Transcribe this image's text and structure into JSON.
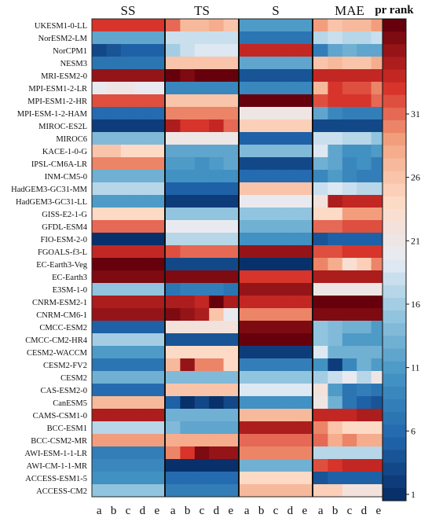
{
  "chart_data": {
    "type": "heatmap",
    "column_groups": [
      "SS",
      "TS",
      "S",
      "MAE"
    ],
    "sub_columns": [
      "a",
      "b",
      "c",
      "d",
      "e"
    ],
    "models": [
      "UKESM1-0-LL",
      "NorESM2-LM",
      "NorCPM1",
      "NESM3",
      "MRI-ESM2-0",
      "MPI-ESM1-2-LR",
      "MPI-ESM1-2-HR",
      "MPI-ESM-1-2-HAM",
      "MIROC-ES2L",
      "MIROC6",
      "KACE-1-0-G",
      "IPSL-CM6A-LR",
      "INM-CM5-0",
      "HadGEM3-GC31-MM",
      "HadGEM3-GC31-LL",
      "GISS-E2-1-G",
      "GFDL-ESM4",
      "FIO-ESM-2-0",
      "FGOALS-f3-L",
      "EC-Earth3-Veg",
      "EC-Earth3",
      "E3SM-1-0",
      "CNRM-ESM2-1",
      "CNRM-CM6-1",
      "CMCC-ESM2",
      "CMCC-CM2-HR4",
      "CESM2-WACCM",
      "CESM2-FV2",
      "CESM2",
      "CAS-ESM2-0",
      "CanESM5",
      "CAMS-CSM1-0",
      "BCC-ESM1",
      "BCC-CSM2-MR",
      "AWI-ESM-1-1-LR",
      "AWI-CM-1-1-MR",
      "ACCESS-ESM1-5",
      "ACCESS-CM2"
    ],
    "colorbar": {
      "label": "pr rank",
      "ticks": [
        1,
        6,
        11,
        16,
        21,
        26,
        31
      ],
      "range": [
        1,
        38
      ],
      "colormap": "RdBu_r (blue = low rank, red = high rank)"
    },
    "values": {
      "SS": [
        [
          33,
          33,
          33,
          33,
          33
        ],
        [
          12,
          12,
          12,
          12,
          12
        ],
        [
          3,
          4,
          5,
          5,
          5
        ],
        [
          7,
          7,
          7,
          7,
          7
        ],
        [
          36,
          36,
          36,
          36,
          36
        ],
        [
          20,
          21,
          21,
          20,
          20
        ],
        [
          32,
          32,
          32,
          32,
          32
        ],
        [
          6,
          6,
          6,
          6,
          6
        ],
        [
          2,
          2,
          2,
          2,
          2
        ],
        [
          14,
          14,
          14,
          14,
          14
        ],
        [
          26,
          26,
          24,
          24,
          24
        ],
        [
          30,
          30,
          30,
          30,
          30
        ],
        [
          13,
          13,
          13,
          13,
          13
        ],
        [
          17,
          17,
          17,
          17,
          17
        ],
        [
          11,
          11,
          11,
          11,
          11
        ],
        [
          24,
          24,
          24,
          24,
          24
        ],
        [
          31,
          31,
          31,
          31,
          31
        ],
        [
          1,
          1,
          1,
          1,
          1
        ],
        [
          34,
          34,
          34,
          34,
          34
        ],
        [
          38,
          38,
          38,
          38,
          38
        ],
        [
          37,
          37,
          37,
          37,
          37
        ],
        [
          15,
          15,
          15,
          15,
          15
        ],
        [
          35,
          35,
          35,
          35,
          35
        ],
        [
          36,
          36,
          36,
          36,
          36
        ],
        [
          5,
          5,
          5,
          5,
          5
        ],
        [
          16,
          16,
          16,
          16,
          16
        ],
        [
          11,
          11,
          11,
          11,
          11
        ],
        [
          7,
          7,
          7,
          7,
          7
        ],
        [
          13,
          13,
          13,
          13,
          13
        ],
        [
          6,
          6,
          6,
          6,
          6
        ],
        [
          27,
          27,
          27,
          27,
          27
        ],
        [
          35,
          35,
          35,
          35,
          35
        ],
        [
          17,
          17,
          17,
          17,
          17
        ],
        [
          29,
          29,
          29,
          29,
          29
        ],
        [
          8,
          8,
          8,
          8,
          8
        ],
        [
          9,
          9,
          9,
          9,
          9
        ],
        [
          10,
          10,
          10,
          10,
          10
        ],
        [
          15,
          15,
          15,
          15,
          15
        ]
      ],
      "TS": [
        [
          31,
          27,
          27,
          28,
          26
        ],
        [
          18,
          18,
          18,
          18,
          18
        ],
        [
          16,
          18,
          19,
          19,
          19
        ],
        [
          26,
          26,
          26,
          26,
          26
        ],
        [
          38,
          37,
          38,
          38,
          38
        ],
        [
          9,
          9,
          9,
          9,
          9
        ],
        [
          26,
          26,
          26,
          26,
          26
        ],
        [
          30,
          30,
          30,
          30,
          30
        ],
        [
          35,
          33,
          33,
          34,
          31
        ],
        [
          21,
          21,
          21,
          21,
          21
        ],
        [
          12,
          12,
          12,
          12,
          12
        ],
        [
          11,
          11,
          10,
          11,
          12
        ],
        [
          10,
          10,
          10,
          10,
          10
        ],
        [
          5,
          5,
          5,
          5,
          5
        ],
        [
          2,
          2,
          2,
          2,
          2
        ],
        [
          15,
          15,
          15,
          15,
          15
        ],
        [
          20,
          20,
          20,
          20,
          20
        ],
        [
          17,
          17,
          17,
          17,
          17
        ],
        [
          32,
          31,
          31,
          31,
          31
        ],
        [
          3,
          3,
          3,
          3,
          3
        ],
        [
          37,
          37,
          37,
          37,
          37
        ],
        [
          7,
          8,
          8,
          8,
          7
        ],
        [
          35,
          35,
          34,
          38,
          35
        ],
        [
          37,
          36,
          35,
          26,
          20
        ],
        [
          22,
          22,
          22,
          22,
          22
        ],
        [
          4,
          4,
          4,
          4,
          4
        ],
        [
          24,
          24,
          24,
          24,
          24
        ],
        [
          27,
          36,
          30,
          30,
          24
        ],
        [
          14,
          14,
          14,
          14,
          14
        ],
        [
          26,
          26,
          26,
          26,
          26
        ],
        [
          5,
          1,
          3,
          1,
          3
        ],
        [
          13,
          13,
          13,
          13,
          13
        ],
        [
          14,
          12,
          12,
          12,
          12
        ],
        [
          28,
          28,
          28,
          28,
          28
        ],
        [
          30,
          33,
          37,
          36,
          36
        ],
        [
          1,
          1,
          1,
          1,
          1
        ],
        [
          6,
          6,
          6,
          6,
          6
        ],
        [
          8,
          8,
          8,
          8,
          8
        ]
      ],
      "S": [
        [
          11,
          11,
          11,
          11,
          11
        ],
        [
          7,
          7,
          7,
          7,
          7
        ],
        [
          34,
          34,
          34,
          34,
          34
        ],
        [
          12,
          12,
          12,
          12,
          12
        ],
        [
          4,
          4,
          4,
          4,
          4
        ],
        [
          9,
          9,
          9,
          9,
          9
        ],
        [
          38,
          38,
          38,
          38,
          38
        ],
        [
          21,
          21,
          21,
          21,
          21
        ],
        [
          25,
          25,
          25,
          25,
          25
        ],
        [
          5,
          5,
          5,
          5,
          5
        ],
        [
          14,
          14,
          14,
          14,
          14
        ],
        [
          3,
          3,
          3,
          3,
          3
        ],
        [
          6,
          6,
          6,
          6,
          6
        ],
        [
          26,
          26,
          26,
          26,
          26
        ],
        [
          20,
          20,
          20,
          20,
          20
        ],
        [
          15,
          15,
          15,
          15,
          15
        ],
        [
          13,
          13,
          13,
          13,
          13
        ],
        [
          10,
          10,
          10,
          10,
          10
        ],
        [
          36,
          36,
          36,
          36,
          36
        ],
        [
          1,
          1,
          1,
          1,
          1
        ],
        [
          33,
          33,
          33,
          33,
          33
        ],
        [
          36,
          36,
          36,
          36,
          36
        ],
        [
          34,
          34,
          34,
          34,
          34
        ],
        [
          30,
          30,
          30,
          30,
          30
        ],
        [
          37,
          37,
          37,
          37,
          37
        ],
        [
          38,
          38,
          38,
          38,
          38
        ],
        [
          2,
          2,
          2,
          2,
          2
        ],
        [
          8,
          8,
          8,
          8,
          8
        ],
        [
          15,
          15,
          15,
          15,
          15
        ],
        [
          19,
          19,
          19,
          19,
          19
        ],
        [
          10,
          10,
          10,
          10,
          10
        ],
        [
          27,
          27,
          27,
          27,
          27
        ],
        [
          35,
          35,
          35,
          35,
          35
        ],
        [
          31,
          31,
          31,
          31,
          31
        ],
        [
          30,
          30,
          30,
          30,
          30
        ],
        [
          13,
          13,
          13,
          13,
          13
        ],
        [
          24,
          24,
          24,
          24,
          24
        ],
        [
          27,
          27,
          27,
          27,
          27
        ]
      ],
      "MAE": [
        [
          29,
          26,
          27,
          27,
          29
        ],
        [
          17,
          18,
          17,
          17,
          18
        ],
        [
          8,
          12,
          13,
          12,
          12
        ],
        [
          26,
          27,
          26,
          26,
          28
        ],
        [
          34,
          34,
          34,
          34,
          34
        ],
        [
          27,
          33,
          32,
          32,
          30
        ],
        [
          32,
          33,
          33,
          33,
          31
        ],
        [
          12,
          9,
          8,
          8,
          8
        ],
        [
          3,
          3,
          3,
          3,
          3
        ],
        [
          18,
          18,
          17,
          17,
          15
        ],
        [
          19,
          12,
          10,
          10,
          11
        ],
        [
          13,
          12,
          9,
          10,
          8
        ],
        [
          9,
          11,
          9,
          8,
          8
        ],
        [
          18,
          19,
          18,
          17,
          17
        ],
        [
          22,
          35,
          34,
          34,
          34
        ],
        [
          24,
          24,
          29,
          29,
          29
        ],
        [
          31,
          31,
          32,
          32,
          32
        ],
        [
          4,
          5,
          5,
          5,
          5
        ],
        [
          32,
          32,
          33,
          33,
          33
        ],
        [
          30,
          28,
          23,
          25,
          30
        ],
        [
          35,
          35,
          35,
          35,
          35
        ],
        [
          21,
          21,
          21,
          21,
          21
        ],
        [
          38,
          38,
          38,
          38,
          38
        ],
        [
          37,
          37,
          37,
          37,
          37
        ],
        [
          15,
          14,
          13,
          13,
          11
        ],
        [
          15,
          14,
          11,
          11,
          11
        ],
        [
          19,
          13,
          13,
          13,
          13
        ],
        [
          10,
          2,
          9,
          13,
          11
        ],
        [
          16,
          18,
          20,
          17,
          21
        ],
        [
          22,
          11,
          7,
          8,
          7
        ],
        [
          21,
          13,
          7,
          5,
          4
        ],
        [
          34,
          34,
          34,
          35,
          35
        ],
        [
          30,
          26,
          24,
          24,
          24
        ],
        [
          31,
          28,
          30,
          28,
          28
        ],
        [
          17,
          17,
          17,
          17,
          17
        ],
        [
          32,
          33,
          34,
          34,
          34
        ],
        [
          4,
          5,
          5,
          5,
          5
        ],
        [
          25,
          25,
          22,
          22,
          22
        ]
      ]
    }
  }
}
